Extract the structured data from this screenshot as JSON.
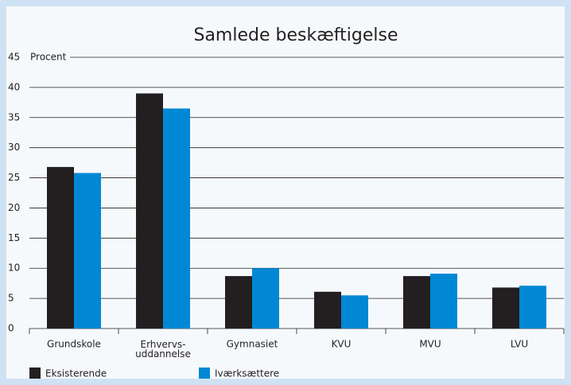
{
  "chart_data": {
    "type": "bar",
    "title": "Samlede beskæftigelse",
    "y_label": "Procent",
    "categories": [
      "Grundskole",
      "Erhvervs-\nuddannelse",
      "Gymnasiet",
      "KVU",
      "MVU",
      "LVU"
    ],
    "series": [
      {
        "name": "Eksisterende",
        "color": "#231f20",
        "values": [
          26.8,
          39,
          8.7,
          6.1,
          8.7,
          6.8
        ]
      },
      {
        "name": "Iværksættere",
        "color": "#0088d4",
        "values": [
          25.8,
          36.5,
          10,
          5.5,
          9.1,
          7.1
        ]
      }
    ],
    "ylim": [
      0,
      45
    ],
    "yticks": [
      0,
      5,
      10,
      15,
      20,
      25,
      30,
      35,
      40,
      45
    ],
    "grid": true
  }
}
